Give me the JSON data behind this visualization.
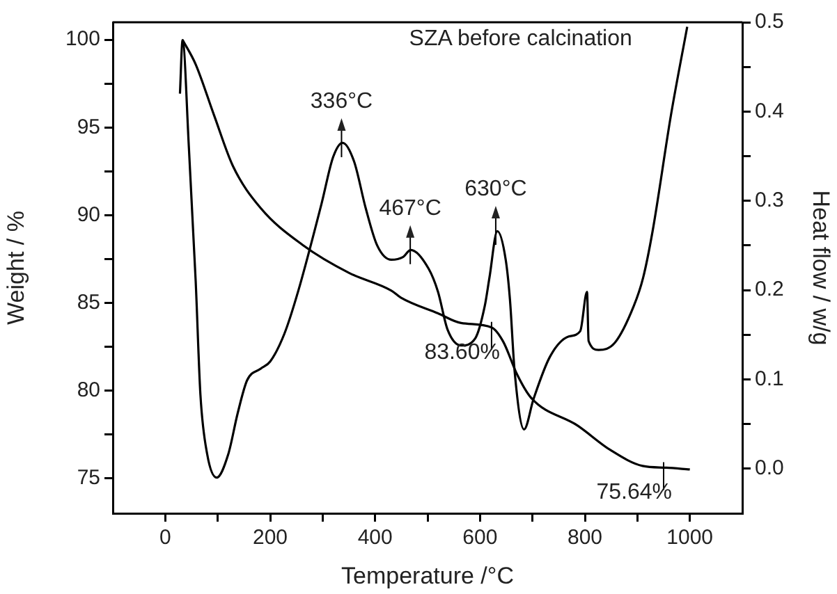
{
  "chart_data": {
    "type": "line",
    "title": "SZA before calcination",
    "xlabel": "Temperature /°C",
    "ylabel": "Weight / %",
    "y2label": "Heat flow / w/g",
    "xlim": [
      -100,
      1100
    ],
    "xticks": [
      0,
      {
        "value": 100,
        "label": null
      },
      200,
      {
        "value": 300,
        "label": null
      },
      400,
      {
        "value": 500,
        "label": null
      },
      600,
      {
        "value": 700,
        "label": null
      },
      800,
      {
        "value": 900,
        "label": null
      },
      1000
    ],
    "ylim": [
      73,
      101
    ],
    "yticks": [
      75,
      {
        "value": 77.5,
        "label": null
      },
      80,
      {
        "value": 82.5,
        "label": null
      },
      85,
      {
        "value": 87.5,
        "label": null
      },
      90,
      {
        "value": 92.5,
        "label": null
      },
      95,
      {
        "value": 97.5,
        "label": null
      },
      100
    ],
    "y2lim": [
      -0.05,
      0.5
    ],
    "y2ticks": [
      {
        "value": 0,
        "label": "0.0"
      },
      {
        "value": 0.05,
        "label": null
      },
      0.1,
      {
        "value": 0.15,
        "label": null
      },
      0.2,
      {
        "value": 0.25,
        "label": null
      },
      0.3,
      {
        "value": 0.35,
        "label": null
      },
      0.4,
      {
        "value": 0.45,
        "label": null
      },
      0.5
    ],
    "grid": false,
    "legend": false,
    "marker": "none",
    "line_style": "solid",
    "series": [
      {
        "color": "#000000",
        "x": [
          33,
          58,
          93,
          129,
          182,
          262,
          351,
          431,
          449,
          520,
          564,
          622,
          644,
          671,
          697,
          786,
          849,
          910,
          955,
          1000
        ],
        "values": [
          100,
          98.6,
          95.7,
          92.8,
          90.4,
          88.3,
          86.7,
          85.7,
          85.3,
          84.4,
          83.85,
          83.6,
          82.8,
          80.9,
          79.6,
          78.0,
          76.6,
          75.7,
          75.6,
          75.5
        ]
      },
      {
        "color": "#000000",
        "axis": "y2",
        "x": [
          28,
          33,
          45,
          58,
          67,
          80,
          98,
          120,
          138,
          156,
          182,
          200,
          227,
          253,
          298,
          320,
          338,
          360,
          382,
          404,
          431,
          453,
          468,
          502,
          520,
          538,
          564,
          591,
          609,
          618,
          633,
          649,
          657,
          666,
          684,
          702,
          733,
          769,
          791,
          804,
          807,
          826,
          857,
          893,
          911,
          929,
          964,
          995
        ],
        "values": [
          0.42,
          0.48,
          0.36,
          0.21,
          0.083,
          0.016,
          -0.01,
          0.016,
          0.062,
          0.099,
          0.112,
          0.12,
          0.151,
          0.198,
          0.297,
          0.349,
          0.365,
          0.344,
          0.292,
          0.25,
          0.234,
          0.237,
          0.245,
          0.224,
          0.198,
          0.156,
          0.138,
          0.146,
          0.182,
          0.214,
          0.266,
          0.234,
          0.19,
          0.109,
          0.044,
          0.078,
          0.125,
          0.148,
          0.154,
          0.198,
          0.143,
          0.133,
          0.141,
          0.182,
          0.214,
          0.266,
          0.396,
          0.495
        ]
      }
    ],
    "annotations": [
      {
        "text": "336°C",
        "x": 336,
        "y": 94.1
      },
      {
        "text": "467°C",
        "x": 467,
        "y": 88
      },
      {
        "text": "630°C",
        "x": 630,
        "y": 89.1
      },
      {
        "text": "83.60%",
        "x": 622,
        "y": 83.6
      },
      {
        "text": "75.64%",
        "x": 950,
        "y": 75.6
      }
    ]
  }
}
